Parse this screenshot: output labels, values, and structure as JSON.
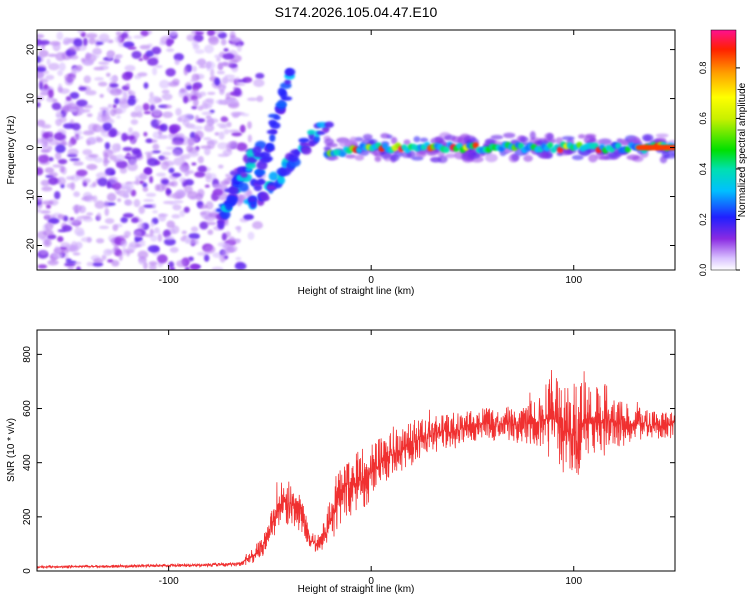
{
  "figure_title": "S174.2026.105.04.47.E10",
  "colors": {
    "signal": "#f03030",
    "background_dots": "#7a2cf0",
    "axis": "#000000"
  },
  "chart_data": [
    {
      "type": "heatmap",
      "title": "S174.2026.105.04.47.E10",
      "xlabel": "Height of straight line (km)",
      "ylabel": "Frequency (Hz)",
      "xlim": [
        -165,
        150
      ],
      "ylim": [
        -25,
        24
      ],
      "x_ticks": [
        -100,
        0,
        100
      ],
      "x_tick_labels": [
        "-100",
        "0",
        "100"
      ],
      "y_ticks": [
        -20,
        -10,
        0,
        10,
        20
      ],
      "y_tick_labels": [
        "-20",
        "-10",
        "0",
        "10",
        "20"
      ],
      "colorbar": {
        "label": "Normalized spectral amplitude",
        "range": [
          0,
          0.95
        ],
        "ticks": [
          0,
          0.2,
          0.4,
          0.6,
          0.8
        ],
        "tick_labels": [
          "0.0",
          "0.2",
          "0.4",
          "0.6",
          "0.8"
        ],
        "colormap": "rainbow"
      },
      "features": [
        {
          "name": "noise-region",
          "x_range": [
            -165,
            -65
          ],
          "y_range": [
            -25,
            24
          ],
          "amplitude": 0.12
        },
        {
          "name": "diagonal-streak-1",
          "from": [
            -75,
            -15
          ],
          "to": [
            -55,
            0
          ],
          "amplitude": 0.3
        },
        {
          "name": "diagonal-streak-2",
          "from": [
            -60,
            -13
          ],
          "to": [
            -40,
            15
          ],
          "amplitude": 0.25
        },
        {
          "name": "diagonal-streak-3",
          "from": [
            -55,
            -10
          ],
          "to": [
            -22,
            5
          ],
          "amplitude": 0.3
        },
        {
          "name": "central-band",
          "x_range": [
            -22,
            150
          ],
          "frequency": 0,
          "amplitude": 0.9
        }
      ]
    },
    {
      "type": "line",
      "xlabel": "Height of straight line (km)",
      "ylabel": "SNR (10 * v/v)",
      "xlim": [
        -165,
        150
      ],
      "ylim": [
        0,
        890
      ],
      "x_ticks": [
        -100,
        0,
        100
      ],
      "x_tick_labels": [
        "-100",
        "0",
        "100"
      ],
      "y_ticks": [
        0,
        200,
        400,
        600,
        800
      ],
      "y_tick_labels": [
        "0",
        "200",
        "400",
        "600",
        "800"
      ],
      "series": [
        {
          "name": "SNR",
          "color": "#f03030",
          "x": [
            -165,
            -120,
            -80,
            -65,
            -58,
            -52,
            -46,
            -42,
            -38,
            -34,
            -30,
            -26,
            -22,
            -20,
            -16,
            -14,
            -12,
            -10,
            -6,
            0,
            5,
            10,
            15,
            20,
            25,
            30,
            35,
            40,
            45,
            50,
            55,
            60,
            65,
            70,
            75,
            80,
            85,
            90,
            95,
            100,
            105,
            110,
            115,
            120,
            125,
            130,
            135,
            140,
            145,
            150
          ],
          "values": [
            15,
            18,
            22,
            25,
            60,
            110,
            230,
            260,
            240,
            200,
            110,
            100,
            150,
            190,
            270,
            260,
            330,
            310,
            330,
            360,
            400,
            430,
            450,
            470,
            490,
            500,
            520,
            510,
            530,
            540,
            545,
            540,
            550,
            545,
            540,
            550,
            560,
            560,
            520,
            500,
            560,
            540,
            560,
            550,
            540,
            545,
            535,
            540,
            535,
            540
          ],
          "spread": [
            8,
            10,
            12,
            15,
            60,
            90,
            150,
            160,
            140,
            110,
            70,
            60,
            120,
            180,
            220,
            200,
            230,
            200,
            210,
            200,
            170,
            160,
            150,
            150,
            130,
            130,
            120,
            120,
            110,
            110,
            110,
            110,
            110,
            120,
            140,
            170,
            220,
            300,
            330,
            340,
            280,
            250,
            260,
            180,
            140,
            120,
            110,
            100,
            90,
            90
          ]
        }
      ]
    }
  ]
}
